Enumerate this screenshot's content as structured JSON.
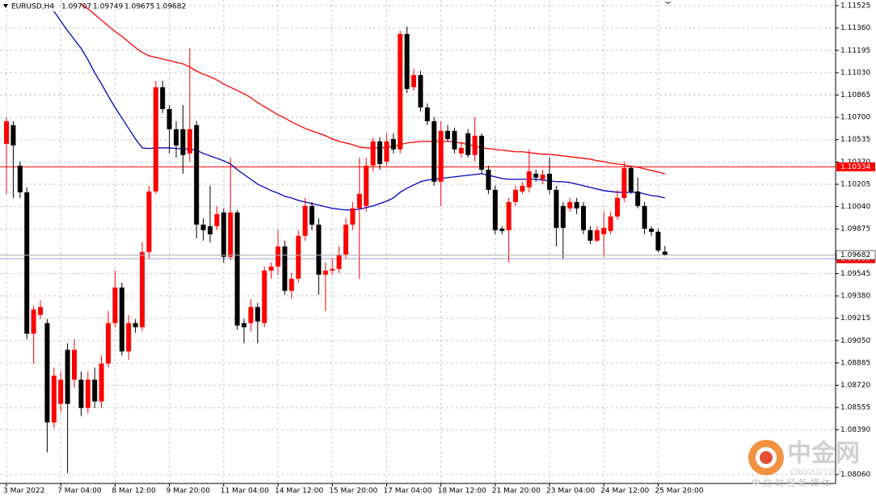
{
  "chart_data": {
    "type": "candlestick",
    "title": "EURUSD,H4",
    "bull_color": "#ff0000",
    "bear_color": "#000000",
    "categories": [
      "3 Mar 2022",
      null,
      null,
      null,
      null,
      null,
      null,
      null,
      "7 Mar 04:00",
      null,
      null,
      null,
      null,
      null,
      null,
      null,
      "8 Mar 12:00",
      null,
      null,
      null,
      null,
      null,
      null,
      null,
      "9 Mar 20:00",
      null,
      null,
      null,
      null,
      null,
      null,
      null,
      "11 Mar 04:00",
      null,
      null,
      null,
      null,
      null,
      null,
      null,
      "14 Mar 12:00",
      null,
      null,
      null,
      null,
      null,
      null,
      null,
      "15 Mar 20:00",
      null,
      null,
      null,
      null,
      null,
      null,
      null,
      "17 Mar 04:00",
      null,
      null,
      null,
      null,
      null,
      null,
      null,
      "18 Mar 12:00",
      null,
      null,
      null,
      null,
      null,
      null,
      null,
      "21 Mar 20:00",
      null,
      null,
      null,
      null,
      null,
      null,
      null,
      "23 Mar 04:00",
      null,
      null,
      null,
      null,
      null,
      null,
      null,
      "24 Mar 12:00",
      null,
      null,
      null,
      null,
      null,
      null,
      null,
      "25 Mar 20:00",
      null
    ],
    "open": [
      1.10504,
      1.10642,
      1.10343,
      1.10146,
      1.09101,
      1.09239,
      1.09179,
      1.08445,
      1.08582,
      1.08982,
      1.08761,
      1.08761,
      1.08552,
      1.08761,
      1.086,
      1.0888,
      1.09179,
      1.09442,
      1.0897,
      1.09179,
      1.09149,
      1.09704,
      1.10152,
      1.10922,
      1.10761,
      1.10612,
      1.10612,
      1.10433,
      1.10642,
      1.09907,
      1.09895,
      1.09895,
      1.09997,
      1.09669,
      1.09997,
      1.09179,
      1.09179,
      1.09298,
      1.09179,
      1.09567,
      1.09597,
      1.09746,
      1.09418,
      1.09507,
      1.09824,
      1.10045,
      1.09907,
      1.09537,
      1.09567,
      1.09579,
      1.09686,
      1.09907,
      1.10027,
      1.10045,
      1.10343,
      1.10522,
      1.10373,
      1.1054,
      1.10463,
      1.11316,
      1.10922,
      1.11012,
      1.10773,
      1.10671,
      1.10224,
      1.106,
      1.106,
      1.10433,
      1.10582,
      1.10421,
      1.10564,
      1.10313,
      1.10164,
      1.09877,
      1.09866,
      1.10074,
      1.10152,
      1.10182,
      1.10283,
      1.10242,
      1.10283,
      1.10164,
      1.10045,
      1.10027,
      1.10074,
      1.10045,
      1.09866,
      1.09788,
      1.09836,
      1.0986,
      1.09967,
      1.10104,
      1.10325,
      1.10152,
      1.10045,
      1.09877,
      1.09854,
      1.09707
    ],
    "high": [
      1.10701,
      1.10671,
      1.10373,
      1.10182,
      1.0931,
      1.09346,
      1.09209,
      1.08851,
      1.08821,
      1.0903,
      1.0906,
      1.08821,
      1.08821,
      1.08851,
      1.0894,
      1.09269,
      1.09567,
      1.09477,
      1.09239,
      1.09209,
      1.09776,
      1.10194,
      1.1097,
      1.1097,
      1.10791,
      1.10671,
      1.10791,
      1.11209,
      1.10671,
      1.09955,
      1.10194,
      1.10045,
      1.10027,
      1.10403,
      1.10015,
      1.09209,
      1.09358,
      1.09328,
      1.09597,
      1.09627,
      1.09866,
      1.09788,
      1.09549,
      1.09866,
      1.10104,
      1.10074,
      1.09955,
      1.09627,
      1.09657,
      1.09746,
      1.09955,
      1.10074,
      1.10403,
      1.10403,
      1.10552,
      1.10552,
      1.10582,
      1.10582,
      1.1134,
      1.1137,
      1.1106,
      1.11042,
      1.10803,
      1.10701,
      1.10671,
      1.10642,
      1.10624,
      1.10522,
      1.10612,
      1.10701,
      1.10582,
      1.10343,
      1.10194,
      1.09895,
      1.10104,
      1.10194,
      1.10224,
      1.10463,
      1.10313,
      1.10313,
      1.10403,
      1.10194,
      1.10074,
      1.10104,
      1.10104,
      1.10074,
      1.09895,
      1.09895,
      1.10003,
      1.10003,
      1.10164,
      1.10373,
      1.10343,
      1.10254,
      1.10074,
      1.09895,
      1.09877,
      1.09749
    ],
    "low": [
      1.10134,
      1.10104,
      1.10104,
      1.0906,
      1.0888,
      1.09209,
      1.08224,
      1.08403,
      1.08522,
      1.08069,
      1.08701,
      1.08492,
      1.0851,
      1.08552,
      1.08552,
      1.08851,
      1.09149,
      1.0894,
      1.0891,
      1.09107,
      1.09119,
      1.09657,
      1.10134,
      1.10731,
      1.10433,
      1.10403,
      1.10283,
      1.10373,
      1.09806,
      1.09788,
      1.09776,
      1.09866,
      1.09627,
      1.09645,
      1.09131,
      1.0903,
      1.09119,
      1.0903,
      1.09149,
      1.09507,
      1.09537,
      1.09388,
      1.09358,
      1.09477,
      1.09788,
      1.09866,
      1.09388,
      1.09269,
      1.09537,
      1.09549,
      1.09657,
      1.09866,
      1.09507,
      1.10003,
      1.10301,
      1.10313,
      1.10343,
      1.10433,
      1.10433,
      1.1088,
      1.10898,
      1.10743,
      1.10642,
      1.10194,
      1.10045,
      1.10522,
      1.10433,
      1.10403,
      1.10403,
      1.10373,
      1.10283,
      1.10134,
      1.09836,
      1.09836,
      1.09627,
      1.10045,
      1.10134,
      1.10146,
      1.10224,
      1.10206,
      1.10134,
      1.09746,
      1.09657,
      1.10003,
      1.09985,
      1.09836,
      1.09764,
      1.09776,
      1.09669,
      1.09836,
      1.09943,
      1.10074,
      1.10134,
      1.10027,
      1.09836,
      1.09824,
      1.09704,
      1.09675
    ],
    "close": [
      1.10671,
      1.10492,
      1.10146,
      1.09101,
      1.0928,
      1.09298,
      1.08445,
      1.08791,
      1.08761,
      1.08582,
      1.08982,
      1.08552,
      1.08761,
      1.086,
      1.0888,
      1.09179,
      1.09442,
      1.0897,
      1.09179,
      1.09149,
      1.09704,
      1.10152,
      1.10922,
      1.10761,
      1.10612,
      1.10492,
      1.10421,
      1.10612,
      1.09907,
      1.09866,
      1.09836,
      1.09985,
      1.09669,
      1.09997,
      1.09161,
      1.09149,
      1.09298,
      1.09191,
      1.09567,
      1.09597,
      1.09746,
      1.09418,
      1.09507,
      1.09824,
      1.10045,
      1.09907,
      1.09537,
      1.09567,
      1.09579,
      1.09686,
      1.09907,
      1.10027,
      1.10134,
      1.10343,
      1.10522,
      1.10355,
      1.10522,
      1.10463,
      1.11316,
      1.1091,
      1.11012,
      1.10773,
      1.10671,
      1.10224,
      1.106,
      1.1054,
      1.10463,
      1.10474,
      1.10421,
      1.10564,
      1.10313,
      1.10164,
      1.09866,
      1.0986,
      1.10074,
      1.10164,
      1.10194,
      1.10301,
      1.10254,
      1.10277,
      1.10164,
      1.09883,
      1.09883,
      1.10074,
      1.10027,
      1.09866,
      1.09788,
      1.09866,
      1.09883,
      1.09967,
      1.10104,
      1.10325,
      1.10152,
      1.10045,
      1.09877,
      1.09854,
      1.09716,
      1.09682
    ],
    "series": [
      {
        "color": "#ff0000",
        "values": [
          null,
          null,
          null,
          null,
          null,
          null,
          null,
          null,
          null,
          null,
          null,
          1.11537,
          1.11501,
          1.1146,
          1.11418,
          1.11376,
          1.11334,
          1.11298,
          1.11257,
          1.11215,
          1.11179,
          1.11155,
          1.11143,
          1.11131,
          1.11119,
          1.11107,
          1.11095,
          1.11072,
          1.11042,
          1.11018,
          1.11,
          1.10976,
          1.10946,
          1.10922,
          1.10898,
          1.10874,
          1.10845,
          1.10809,
          1.10779,
          1.10749,
          1.10719,
          1.10695,
          1.10666,
          1.10642,
          1.10618,
          1.106,
          1.10582,
          1.10564,
          1.1054,
          1.10522,
          1.1051,
          1.10498,
          1.1048,
          1.10474,
          1.10474,
          1.10474,
          1.1048,
          1.10486,
          1.10498,
          1.1051,
          1.10516,
          1.10522,
          1.10522,
          1.10522,
          1.10522,
          1.10522,
          1.10516,
          1.1051,
          1.10498,
          1.10486,
          1.10474,
          1.10469,
          1.10463,
          1.10457,
          1.10451,
          1.10445,
          1.10445,
          1.10439,
          1.10433,
          1.10427,
          1.10427,
          1.10421,
          1.10415,
          1.10409,
          1.10403,
          1.10397,
          1.10391,
          1.10379,
          1.10373,
          1.10361,
          1.10355,
          1.10349,
          1.10337,
          1.10331,
          1.10319,
          1.10307,
          1.10295,
          1.10283
        ]
      },
      {
        "color": "#0000c0",
        "values": [
          null,
          null,
          null,
          null,
          null,
          null,
          null,
          1.11483,
          1.11412,
          1.1134,
          1.11275,
          1.11209,
          1.11125,
          1.1103,
          1.10946,
          1.10857,
          1.10773,
          1.10695,
          1.10618,
          1.1054,
          1.10474,
          1.10469,
          1.10474,
          1.10474,
          1.10474,
          1.10469,
          1.10469,
          1.10463,
          1.10457,
          1.10433,
          1.10415,
          1.10397,
          1.10379,
          1.10355,
          1.10313,
          1.10277,
          1.10242,
          1.10206,
          1.10182,
          1.10158,
          1.1014,
          1.10116,
          1.10104,
          1.10086,
          1.10074,
          1.10063,
          1.10051,
          1.10039,
          1.10027,
          1.10021,
          1.10015,
          1.10015,
          1.10021,
          1.10033,
          1.10045,
          1.10063,
          1.1008,
          1.10104,
          1.10146,
          1.10176,
          1.102,
          1.10224,
          1.10236,
          1.10242,
          1.10248,
          1.10254,
          1.1026,
          1.10266,
          1.10272,
          1.10277,
          1.10283,
          1.10272,
          1.1026,
          1.10248,
          1.10242,
          1.10242,
          1.10242,
          1.10242,
          1.10242,
          1.10236,
          1.1023,
          1.10224,
          1.10224,
          1.10218,
          1.10206,
          1.10194,
          1.10182,
          1.1017,
          1.10158,
          1.10152,
          1.10146,
          1.10146,
          1.10146,
          1.10146,
          1.10134,
          1.10122,
          1.10116,
          1.10104
        ]
      }
    ],
    "price_lines": [
      {
        "value": 1.10334,
        "color": "#ff0000"
      },
      {
        "value": 1.09655,
        "color": "#a0a0d0"
      }
    ],
    "ylim": [
      1.07994,
      1.11567
    ],
    "yticks": [
      1.11525,
      {
        "value": 1.1136,
        "label": "1.11360"
      },
      1.11195,
      {
        "value": 1.1103,
        "label": "1.11030"
      },
      1.10865,
      {
        "value": 1.107,
        "label": "1.10700"
      },
      1.10535,
      {
        "value": 1.1037,
        "label": "1.10370"
      },
      1.10205,
      {
        "value": 1.1004,
        "label": "1.10040"
      },
      1.09875,
      1.09545,
      {
        "value": 1.0938,
        "label": "1.09380"
      },
      1.09215,
      {
        "value": 1.0905,
        "label": "1.09050"
      },
      1.08885,
      {
        "value": 1.0872,
        "label": "1.08720"
      },
      1.08555,
      {
        "value": 1.0839,
        "label": "1.08390"
      },
      {
        "value": 1.0806,
        "label": "1.08060"
      }
    ],
    "grid": true
  },
  "watermark": {
    "brand": "中金网",
    "site": "CNGOLD.COM",
    "tagline": "中 文 财 经 新 媒 体"
  }
}
